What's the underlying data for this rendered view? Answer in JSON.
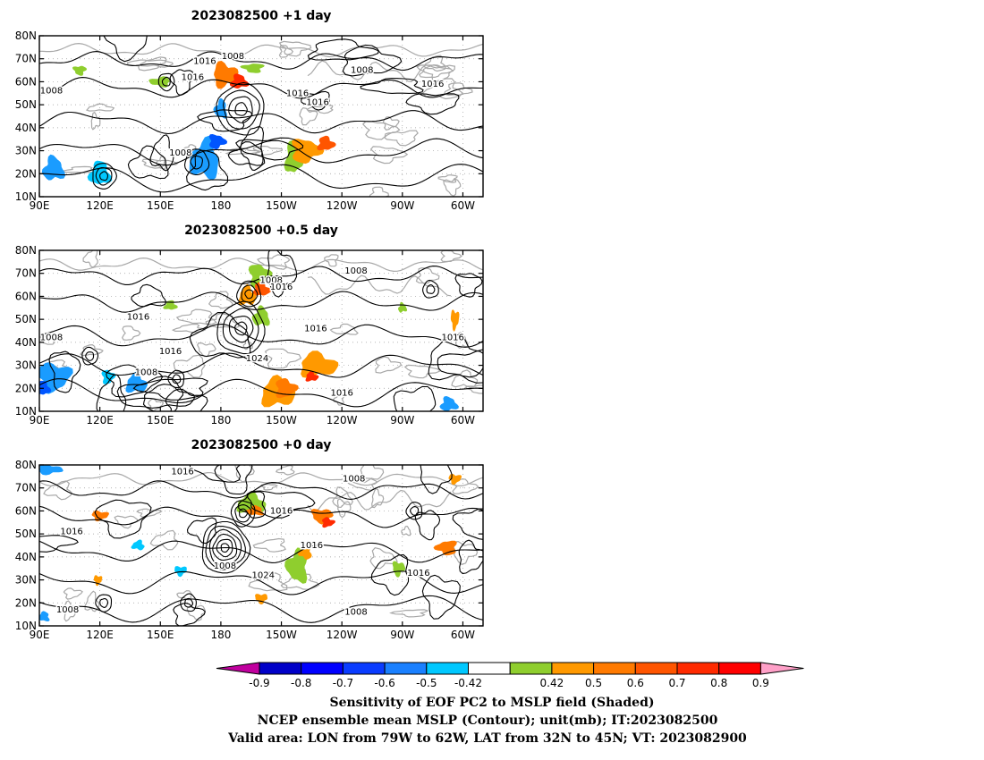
{
  "panels": [
    {
      "title": "2023082500  +1 day",
      "shading": [
        {
          "sign": "pos",
          "lon": 182,
          "lat": 63,
          "rlon": 6,
          "rlat": 5,
          "color": "#ff7a00"
        },
        {
          "sign": "pos",
          "lon": 189,
          "lat": 60,
          "rlon": 4,
          "rlat": 3,
          "color": "#ff2a00"
        },
        {
          "sign": "pos",
          "lon": 196,
          "lat": 66,
          "rlon": 5,
          "rlat": 2,
          "color": "#8fce2e"
        },
        {
          "sign": "pos",
          "lon": 216,
          "lat": 27,
          "rlon": 4,
          "rlat": 7,
          "color": "#8fce2e"
        },
        {
          "sign": "pos",
          "lon": 222,
          "lat": 30,
          "rlon": 7,
          "rlat": 5,
          "color": "#ff9900"
        },
        {
          "sign": "pos",
          "lon": 232,
          "lat": 33,
          "rlon": 4,
          "rlat": 3,
          "color": "#ff5500"
        },
        {
          "sign": "pos",
          "lon": 150,
          "lat": 60,
          "rlon": 5,
          "rlat": 2,
          "color": "#8fce2e"
        },
        {
          "sign": "pos",
          "lon": 110,
          "lat": 65,
          "rlon": 3,
          "rlat": 2,
          "color": "#8fce2e"
        },
        {
          "sign": "neg",
          "lon": 172,
          "lat": 26,
          "rlon": 7,
          "rlat": 8,
          "color": "#1a9cff"
        },
        {
          "sign": "neg",
          "lon": 178,
          "lat": 34,
          "rlon": 4,
          "rlat": 3,
          "color": "#0055ff"
        },
        {
          "sign": "neg",
          "lon": 120,
          "lat": 20,
          "rlon": 5,
          "rlat": 5,
          "color": "#00c8ff"
        },
        {
          "sign": "neg",
          "lon": 97,
          "lat": 22,
          "rlon": 5,
          "rlat": 5,
          "color": "#1a9cff"
        },
        {
          "sign": "neg",
          "lon": 180,
          "lat": 48,
          "rlon": 3,
          "rlat": 4,
          "color": "#1a9cff"
        }
      ],
      "lows": [
        {
          "lon": 190,
          "lat": 48,
          "rings": 4,
          "size": 3
        },
        {
          "lon": 122,
          "lat": 19,
          "rings": 3,
          "size": 2
        },
        {
          "lon": 168,
          "lat": 25,
          "rings": 2,
          "size": 3
        },
        {
          "lon": 153,
          "lat": 60,
          "rings": 2,
          "size": 2
        }
      ],
      "labels": [
        {
          "lon": 96,
          "lat": 56,
          "text": "1008"
        },
        {
          "lon": 172,
          "lat": 69,
          "text": "1016"
        },
        {
          "lon": 166,
          "lat": 62,
          "text": "1016"
        },
        {
          "lon": 186,
          "lat": 71,
          "text": "1008"
        },
        {
          "lon": 250,
          "lat": 65,
          "text": "1008"
        },
        {
          "lon": 218,
          "lat": 55,
          "text": "1016"
        },
        {
          "lon": 228,
          "lat": 51,
          "text": "1016"
        },
        {
          "lon": 285,
          "lat": 59,
          "text": "1016"
        },
        {
          "lon": 160,
          "lat": 29,
          "text": "1008"
        }
      ]
    },
    {
      "title": "2023082500  +0.5 day",
      "shading": [
        {
          "sign": "pos",
          "lon": 199,
          "lat": 69,
          "rlon": 5,
          "rlat": 5,
          "color": "#8fce2e"
        },
        {
          "sign": "pos",
          "lon": 200,
          "lat": 63,
          "rlon": 4,
          "rlat": 3,
          "color": "#ff5500"
        },
        {
          "sign": "pos",
          "lon": 193,
          "lat": 60,
          "rlon": 4,
          "rlat": 4,
          "color": "#ff9900"
        },
        {
          "sign": "pos",
          "lon": 200,
          "lat": 51,
          "rlon": 4,
          "rlat": 4,
          "color": "#8fce2e"
        },
        {
          "sign": "pos",
          "lon": 208,
          "lat": 18,
          "rlon": 8,
          "rlat": 6,
          "color": "#ff9900"
        },
        {
          "sign": "pos",
          "lon": 212,
          "lat": 20,
          "rlon": 5,
          "rlat": 4,
          "color": "#ff7a00"
        },
        {
          "sign": "pos",
          "lon": 228,
          "lat": 30,
          "rlon": 9,
          "rlat": 5,
          "color": "#ff9900"
        },
        {
          "sign": "pos",
          "lon": 225,
          "lat": 25,
          "rlon": 3,
          "rlat": 2,
          "color": "#ff2a00"
        },
        {
          "sign": "pos",
          "lon": 270,
          "lat": 55,
          "rlon": 2,
          "rlat": 2,
          "color": "#8fce2e"
        },
        {
          "sign": "pos",
          "lon": 296,
          "lat": 50,
          "rlon": 2,
          "rlat": 4,
          "color": "#ff9900"
        },
        {
          "sign": "pos",
          "lon": 155,
          "lat": 56,
          "rlon": 3,
          "rlat": 2,
          "color": "#8fce2e"
        },
        {
          "sign": "neg",
          "lon": 97,
          "lat": 25,
          "rlon": 8,
          "rlat": 6,
          "color": "#1a9cff"
        },
        {
          "sign": "neg",
          "lon": 92,
          "lat": 20,
          "rlon": 3,
          "rlat": 3,
          "color": "#0055ff"
        },
        {
          "sign": "neg",
          "lon": 124,
          "lat": 25,
          "rlon": 3,
          "rlat": 3,
          "color": "#00c8ff"
        },
        {
          "sign": "neg",
          "lon": 138,
          "lat": 22,
          "rlon": 5,
          "rlat": 4,
          "color": "#1a9cff"
        },
        {
          "sign": "neg",
          "lon": 293,
          "lat": 13,
          "rlon": 4,
          "rlat": 3,
          "color": "#1a9cff"
        }
      ],
      "lows": [
        {
          "lon": 190,
          "lat": 46,
          "rings": 4,
          "size": 3
        },
        {
          "lon": 194,
          "lat": 61,
          "rings": 3,
          "size": 2
        },
        {
          "lon": 158,
          "lat": 24,
          "rings": 2,
          "size": 2
        },
        {
          "lon": 115,
          "lat": 34,
          "rings": 2,
          "size": 2
        },
        {
          "lon": 284,
          "lat": 63,
          "rings": 2,
          "size": 2
        }
      ],
      "labels": [
        {
          "lon": 96,
          "lat": 42,
          "text": "1008"
        },
        {
          "lon": 139,
          "lat": 51,
          "text": "1016"
        },
        {
          "lon": 155,
          "lat": 36,
          "text": "1016"
        },
        {
          "lon": 143,
          "lat": 27,
          "text": "1008"
        },
        {
          "lon": 205,
          "lat": 67,
          "text": "1008"
        },
        {
          "lon": 210,
          "lat": 64,
          "text": "1016"
        },
        {
          "lon": 227,
          "lat": 46,
          "text": "1016"
        },
        {
          "lon": 198,
          "lat": 33,
          "text": "1024"
        },
        {
          "lon": 247,
          "lat": 71,
          "text": "1008"
        },
        {
          "lon": 240,
          "lat": 18,
          "text": "1016"
        },
        {
          "lon": 295,
          "lat": 42,
          "text": "1016"
        }
      ]
    },
    {
      "title": "2023082500  +0 day",
      "shading": [
        {
          "sign": "pos",
          "lon": 195,
          "lat": 63,
          "rlon": 7,
          "rlat": 4,
          "color": "#8fce2e"
        },
        {
          "sign": "pos",
          "lon": 197,
          "lat": 60,
          "rlon": 4,
          "rlat": 2,
          "color": "#ff7a00"
        },
        {
          "sign": "pos",
          "lon": 218,
          "lat": 36,
          "rlon": 5,
          "rlat": 7,
          "color": "#8fce2e"
        },
        {
          "sign": "pos",
          "lon": 222,
          "lat": 42,
          "rlon": 3,
          "rlat": 3,
          "color": "#ff9900"
        },
        {
          "sign": "pos",
          "lon": 230,
          "lat": 58,
          "rlon": 5,
          "rlat": 3,
          "color": "#ff7a00"
        },
        {
          "sign": "pos",
          "lon": 233,
          "lat": 55,
          "rlon": 3,
          "rlat": 2,
          "color": "#ff2a00"
        },
        {
          "sign": "pos",
          "lon": 120,
          "lat": 58,
          "rlon": 4,
          "rlat": 2,
          "color": "#ff7a00"
        },
        {
          "sign": "pos",
          "lon": 292,
          "lat": 44,
          "rlon": 5,
          "rlat": 3,
          "color": "#ff7a00"
        },
        {
          "sign": "pos",
          "lon": 268,
          "lat": 35,
          "rlon": 3,
          "rlat": 3,
          "color": "#8fce2e"
        },
        {
          "sign": "pos",
          "lon": 200,
          "lat": 22,
          "rlon": 3,
          "rlat": 2,
          "color": "#ff9900"
        },
        {
          "sign": "pos",
          "lon": 119,
          "lat": 30,
          "rlon": 2,
          "rlat": 2,
          "color": "#ff9900"
        },
        {
          "sign": "pos",
          "lon": 296,
          "lat": 74,
          "rlon": 3,
          "rlat": 2,
          "color": "#ff9900"
        },
        {
          "sign": "neg",
          "lon": 95,
          "lat": 78,
          "rlon": 6,
          "rlat": 2,
          "color": "#1a9cff"
        },
        {
          "sign": "neg",
          "lon": 139,
          "lat": 45,
          "rlon": 3,
          "rlat": 2,
          "color": "#00c8ff"
        },
        {
          "sign": "neg",
          "lon": 160,
          "lat": 34,
          "rlon": 3,
          "rlat": 2,
          "color": "#00c8ff"
        },
        {
          "sign": "neg",
          "lon": 92,
          "lat": 14,
          "rlon": 3,
          "rlat": 2,
          "color": "#1a9cff"
        }
      ],
      "lows": [
        {
          "lon": 182,
          "lat": 44,
          "rings": 6,
          "size": 2
        },
        {
          "lon": 191,
          "lat": 59,
          "rings": 3,
          "size": 2
        },
        {
          "lon": 164,
          "lat": 20,
          "rings": 2,
          "size": 2
        },
        {
          "lon": 276,
          "lat": 60,
          "rings": 2,
          "size": 2
        },
        {
          "lon": 122,
          "lat": 20,
          "rings": 2,
          "size": 2
        }
      ],
      "labels": [
        {
          "lon": 161,
          "lat": 77,
          "text": "1016"
        },
        {
          "lon": 106,
          "lat": 51,
          "text": "1016"
        },
        {
          "lon": 182,
          "lat": 36,
          "text": "1008"
        },
        {
          "lon": 210,
          "lat": 60,
          "text": "1016"
        },
        {
          "lon": 246,
          "lat": 74,
          "text": "1008"
        },
        {
          "lon": 201,
          "lat": 32,
          "text": "1024"
        },
        {
          "lon": 225,
          "lat": 45,
          "text": "1016"
        },
        {
          "lon": 278,
          "lat": 33,
          "text": "1016"
        },
        {
          "lon": 104,
          "lat": 17,
          "text": "1008"
        },
        {
          "lon": 247,
          "lat": 16,
          "text": "1008"
        }
      ]
    }
  ],
  "map_axes": {
    "lon_range": [
      90,
      310
    ],
    "lat_range": [
      10,
      80
    ],
    "lon_ticks": [
      {
        "lon": 90,
        "label": "90E"
      },
      {
        "lon": 120,
        "label": "120E"
      },
      {
        "lon": 150,
        "label": "150E"
      },
      {
        "lon": 180,
        "label": "180"
      },
      {
        "lon": 210,
        "label": "150W"
      },
      {
        "lon": 240,
        "label": "120W"
      },
      {
        "lon": 270,
        "label": "90W"
      },
      {
        "lon": 300,
        "label": "60W"
      }
    ],
    "lat_ticks": [
      {
        "lat": 80,
        "label": "80N"
      },
      {
        "lat": 70,
        "label": "70N"
      },
      {
        "lat": 60,
        "label": "60N"
      },
      {
        "lat": 50,
        "label": "50N"
      },
      {
        "lat": 40,
        "label": "40N"
      },
      {
        "lat": 30,
        "label": "30N"
      },
      {
        "lat": 20,
        "label": "20N"
      },
      {
        "lat": 10,
        "label": "10N"
      }
    ]
  },
  "colorbar": {
    "low_end_color": "#c0009e",
    "high_end_color": "#ffa0c8",
    "segments": [
      {
        "color": "#0000c8"
      },
      {
        "color": "#0000ff"
      },
      {
        "color": "#0a3cff"
      },
      {
        "color": "#1a80ff"
      },
      {
        "color": "#00c8ff"
      },
      {
        "color": "#ffffff"
      },
      {
        "color": "#8fce2e"
      },
      {
        "color": "#ff9900"
      },
      {
        "color": "#ff7a00"
      },
      {
        "color": "#ff5500"
      },
      {
        "color": "#ff2a00"
      },
      {
        "color": "#ff0000"
      }
    ],
    "ticks": [
      "-0.9",
      "-0.8",
      "-0.7",
      "-0.6",
      "-0.5",
      "-0.42",
      "0.42",
      "0.5",
      "0.6",
      "0.7",
      "0.8",
      "0.9"
    ]
  },
  "caption": [
    "Sensitivity of EOF PC2 to MSLP field (Shaded)",
    "NCEP ensemble mean MSLP (Contour); unit(mb); IT:2023082500",
    "Valid area: LON from 79W to 62W, LAT from 32N to 45N; VT: 2023082900"
  ]
}
